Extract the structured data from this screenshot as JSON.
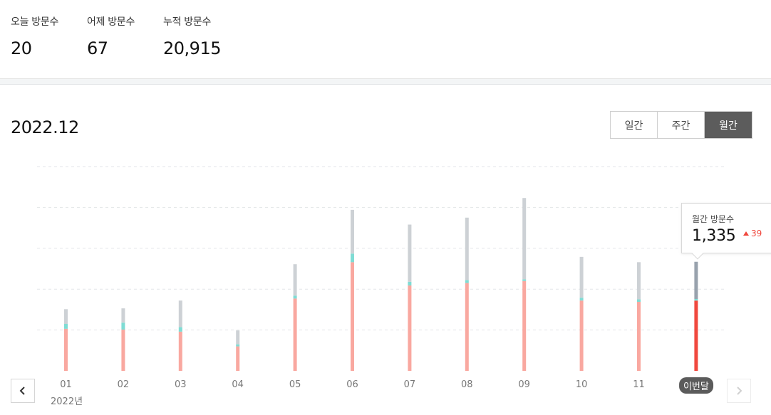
{
  "stats": [
    {
      "label": "오늘 방문수",
      "value": "20"
    },
    {
      "label": "어제 방문수",
      "value": "67"
    },
    {
      "label": "누적 방문수",
      "value": "20,915"
    }
  ],
  "period": {
    "title": "2022.12"
  },
  "toggle": {
    "daily": "일간",
    "weekly": "주간",
    "monthly": "월간",
    "active": "monthly"
  },
  "tooltip": {
    "title": "월간 방문수",
    "value": "1,335",
    "delta": "39"
  },
  "year_label": "2022년",
  "colors": {
    "pink": "#f9a8a0",
    "teal": "#7fdcd4",
    "gray": "#cdd1d5",
    "current_red": "#f0483e",
    "current_gray": "#98a2ad",
    "current_teal": "#7fdcd4"
  },
  "chart_data": {
    "type": "bar",
    "stacked": true,
    "categories": [
      "01",
      "02",
      "03",
      "04",
      "05",
      "06",
      "07",
      "08",
      "09",
      "10",
      "11",
      "이번달"
    ],
    "current_index": 11,
    "series": [
      {
        "values": [
          515,
          505,
          480,
          300,
          885,
          1330,
          1045,
          1075,
          1100,
          860,
          845,
          860
        ]
      },
      {
        "values": [
          60,
          85,
          55,
          25,
          35,
          105,
          45,
          35,
          20,
          35,
          30,
          20
        ]
      },
      {
        "values": [
          180,
          175,
          325,
          170,
          385,
          535,
          700,
          765,
          995,
          500,
          455,
          455
        ]
      }
    ],
    "totals": [
      755,
      765,
      860,
      495,
      1305,
      1970,
      1790,
      1875,
      2115,
      1395,
      1330,
      1335
    ],
    "ylim": [
      0,
      2500
    ],
    "grid": true,
    "gridlines": [
      500,
      1000,
      1500,
      2000,
      2500
    ]
  }
}
